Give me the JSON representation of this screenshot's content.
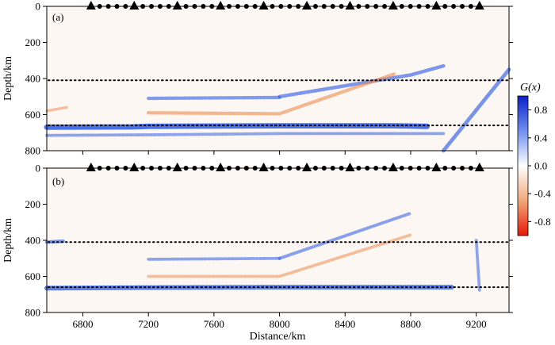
{
  "chart_data": [
    {
      "type": "heatmap",
      "panel_label": "(a)",
      "ylabel": "Depth/km",
      "xlim": [
        6580,
        9400
      ],
      "ylim": [
        800,
        0
      ],
      "yticks": [
        0,
        200,
        400,
        600,
        800
      ],
      "reference_depths_km": [
        410,
        660
      ],
      "station_markers": [
        "triangle",
        "circle",
        "circle",
        "circle",
        "circle",
        "triangle",
        "circle",
        "circle",
        "circle",
        "circle",
        "triangle",
        "circle",
        "circle",
        "circle",
        "circle",
        "triangle",
        "circle",
        "circle",
        "circle",
        "circle",
        "triangle",
        "circle",
        "circle",
        "circle",
        "circle",
        "triangle",
        "circle",
        "circle",
        "circle",
        "circle",
        "triangle",
        "circle",
        "circle",
        "circle",
        "circle",
        "triangle",
        "circle",
        "circle",
        "circle",
        "circle",
        "triangle",
        "circle",
        "circle",
        "circle",
        "circle",
        "triangle"
      ],
      "features": [
        {
          "polarity": "positive",
          "points": [
            [
              6580,
              670
            ],
            [
              7100,
              668
            ],
            [
              7200,
              665
            ],
            [
              8000,
              662
            ],
            [
              8700,
              662
            ],
            [
              8900,
              665
            ]
          ],
          "strength": 0.95
        },
        {
          "polarity": "positive",
          "points": [
            [
              6580,
              715
            ],
            [
              7200,
              712
            ],
            [
              8000,
              705
            ],
            [
              9000,
              705
            ]
          ],
          "strength": 0.35
        },
        {
          "polarity": "positive",
          "points": [
            [
              7200,
              510
            ],
            [
              8000,
              505
            ]
          ],
          "strength": 0.45
        },
        {
          "polarity": "positive",
          "points": [
            [
              8000,
              500
            ],
            [
              8800,
              380
            ],
            [
              9000,
              330
            ]
          ],
          "strength": 0.5
        },
        {
          "polarity": "negative",
          "points": [
            [
              7200,
              590
            ],
            [
              8000,
              595
            ],
            [
              8700,
              375
            ]
          ],
          "strength": 0.45
        },
        {
          "polarity": "positive",
          "points": [
            [
              9000,
              800
            ],
            [
              9400,
              350
            ]
          ],
          "strength": 0.55
        },
        {
          "polarity": "negative",
          "points": [
            [
              6580,
              580
            ],
            [
              6700,
              560
            ]
          ],
          "strength": 0.3
        }
      ]
    },
    {
      "type": "heatmap",
      "panel_label": "(b)",
      "xlabel": "Distance/km",
      "ylabel": "Depth/km",
      "xlim": [
        6580,
        9400
      ],
      "ylim": [
        800,
        0
      ],
      "xticks": [
        6800,
        7200,
        7600,
        8000,
        8400,
        8800,
        9200
      ],
      "yticks": [
        0,
        200,
        400,
        600,
        800
      ],
      "reference_depths_km": [
        410,
        660
      ],
      "station_markers": [
        "triangle",
        "circle",
        "circle",
        "circle",
        "circle",
        "triangle",
        "circle",
        "circle",
        "circle",
        "circle",
        "triangle",
        "circle",
        "circle",
        "circle",
        "circle",
        "triangle",
        "circle",
        "circle",
        "circle",
        "circle",
        "triangle",
        "circle",
        "circle",
        "circle",
        "circle",
        "triangle",
        "circle",
        "circle",
        "circle",
        "circle",
        "triangle",
        "circle",
        "circle",
        "circle",
        "circle",
        "triangle",
        "circle",
        "circle",
        "circle",
        "circle",
        "triangle",
        "circle",
        "circle",
        "circle",
        "circle",
        "triangle"
      ],
      "features": [
        {
          "polarity": "positive",
          "points": [
            [
              6580,
              665
            ],
            [
              7200,
              662
            ],
            [
              8000,
              660
            ],
            [
              9050,
              660
            ]
          ],
          "strength": 0.8
        },
        {
          "polarity": "positive",
          "points": [
            [
              7200,
              505
            ],
            [
              8000,
              500
            ]
          ],
          "strength": 0.35
        },
        {
          "polarity": "positive",
          "points": [
            [
              8000,
              500
            ],
            [
              8800,
              250
            ]
          ],
          "strength": 0.4
        },
        {
          "polarity": "negative",
          "points": [
            [
              7200,
              600
            ],
            [
              8000,
              600
            ],
            [
              8800,
              370
            ]
          ],
          "strength": 0.35
        },
        {
          "polarity": "positive",
          "points": [
            [
              6580,
              410
            ],
            [
              6680,
              405
            ]
          ],
          "strength": 0.5
        },
        {
          "polarity": "positive",
          "points": [
            [
              9200,
              400
            ],
            [
              9220,
              680
            ]
          ],
          "strength": 0.35
        }
      ]
    }
  ],
  "colorbar": {
    "title": "G(x)",
    "ticks": [
      "0.8",
      "0.4",
      "0.0",
      "-0.4",
      "-0.8"
    ],
    "range": [
      -1,
      1
    ],
    "positive_color": "#1030d8",
    "negative_color": "#e83010"
  }
}
